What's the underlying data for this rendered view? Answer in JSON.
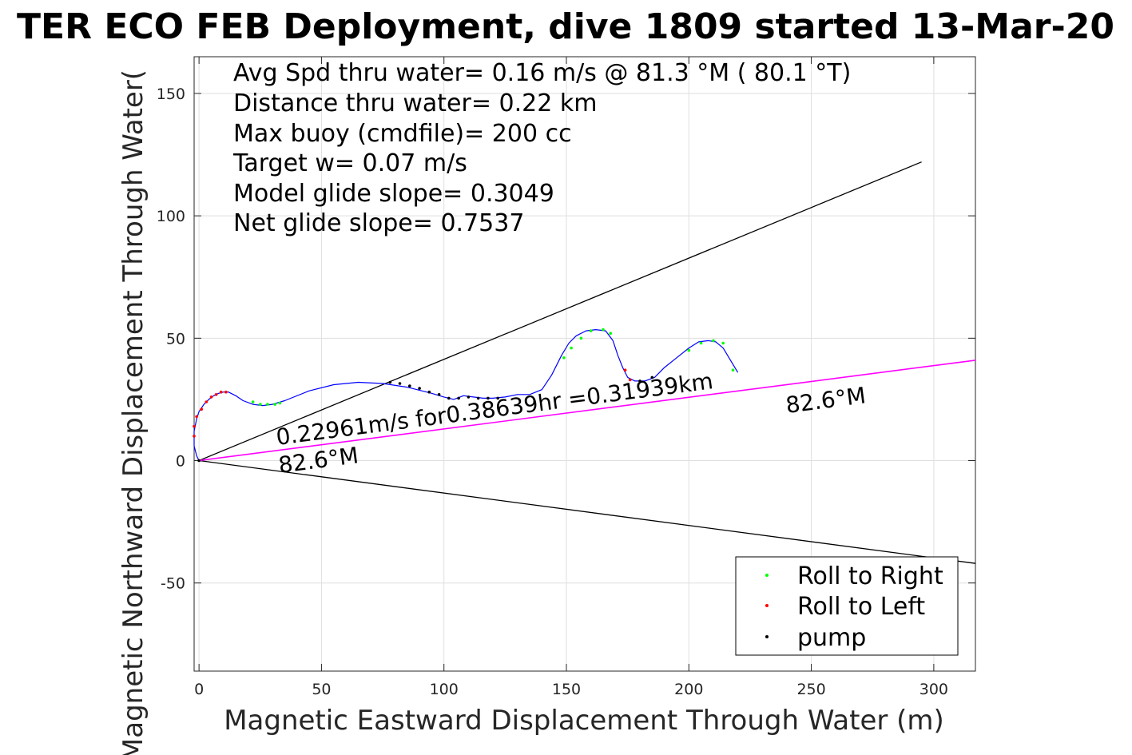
{
  "colors": {
    "track": "#0000ff",
    "roll_right": "#00ff00",
    "roll_left": "#ff0000",
    "pump": "#000000",
    "magnetic_line": "#ff00ff",
    "frame": "#262626",
    "grid": "#dfdfdf"
  },
  "chart_data": {
    "type": "line",
    "title": "TER ECO FEB Deployment, dive 1809 started 13-Mar-20",
    "xlabel": "Magnetic Eastward Displacement Through Water (m)",
    "ylabel": "Magnetic Northward Displacement Through Water(",
    "xlim": [
      -2,
      317
    ],
    "ylim": [
      -86,
      165
    ],
    "xticks": [
      0,
      50,
      100,
      150,
      200,
      250,
      300
    ],
    "yticks": [
      -50,
      0,
      50,
      100,
      150
    ],
    "grid": true,
    "info_lines": [
      "Avg Spd thru water=  0.16 m/s @  81.3 °M ( 80.1 °T)",
      "Distance thru water=  0.22 km",
      "Max buoy (cmdfile)= 200 cc",
      "Target w= 0.07 m/s",
      "Model glide slope= 0.3049",
      "Net glide slope= 0.7537"
    ],
    "annotations": {
      "speed_text": "0.22961m/s for0.38639hr =0.31939km",
      "heading_label_1": "82.6°M",
      "heading_label_2": "82.6°M"
    },
    "legend": {
      "location": "bottom-right",
      "entries": [
        "Roll to Right",
        "Roll to Left",
        "pump"
      ]
    },
    "series": [
      {
        "name": "track",
        "x": [
          0,
          -1,
          -2,
          -2,
          -1,
          0,
          2,
          4,
          6,
          8,
          10,
          12,
          15,
          18,
          22,
          26,
          30,
          35,
          45,
          55,
          65,
          75,
          85,
          95,
          100,
          104,
          108,
          112,
          116,
          120,
          125,
          130,
          135,
          140,
          144,
          148,
          151,
          154,
          158,
          162,
          166,
          169,
          171,
          173,
          175,
          178,
          182,
          186,
          190,
          195,
          200,
          204,
          208,
          211,
          214,
          217,
          220
        ],
        "y": [
          0,
          2,
          6,
          12,
          17,
          20,
          23,
          25,
          26.5,
          27.5,
          28,
          28,
          26.5,
          24.5,
          23,
          22.5,
          23,
          24.5,
          28.5,
          31,
          32,
          31.5,
          30,
          27.5,
          26,
          25,
          26.5,
          26,
          25.5,
          25.5,
          26,
          27,
          27,
          29,
          35,
          43,
          48,
          51,
          53,
          53.5,
          53,
          49,
          43,
          38,
          34,
          32.5,
          32.5,
          34,
          38,
          42,
          46,
          48.5,
          49,
          48.5,
          46,
          41,
          36
        ]
      },
      {
        "name": "cone_upper",
        "x": [
          0,
          295
        ],
        "y": [
          0,
          122
        ]
      },
      {
        "name": "cone_lower",
        "x": [
          0,
          317
        ],
        "y": [
          0,
          -42
        ]
      },
      {
        "name": "heading_line",
        "x": [
          0,
          317
        ],
        "y": [
          0,
          41
        ]
      },
      {
        "name": "Roll to Right",
        "x": [
          22,
          25,
          28,
          31,
          33,
          149,
          152,
          156,
          160,
          165,
          168,
          200,
          205,
          210,
          214,
          218
        ],
        "y": [
          24,
          23,
          23,
          23,
          23.5,
          42,
          46,
          50,
          53,
          53.5,
          52,
          45,
          48,
          49,
          48,
          37
        ]
      },
      {
        "name": "Roll to Left",
        "x": [
          -2,
          -2,
          -1,
          1,
          3,
          5,
          7,
          9,
          11,
          174,
          176
        ],
        "y": [
          10,
          14,
          18,
          21,
          24,
          26,
          27,
          28,
          28,
          37,
          33
        ]
      },
      {
        "name": "pump",
        "x": [
          0,
          78,
          82,
          86,
          90,
          94,
          98,
          102,
          106,
          110,
          114,
          118,
          122,
          180,
          185
        ],
        "y": [
          0,
          32,
          31.5,
          30.5,
          29.5,
          28,
          27,
          25.5,
          25.5,
          26,
          25.5,
          25.5,
          25.5,
          32.5,
          34
        ]
      }
    ]
  }
}
